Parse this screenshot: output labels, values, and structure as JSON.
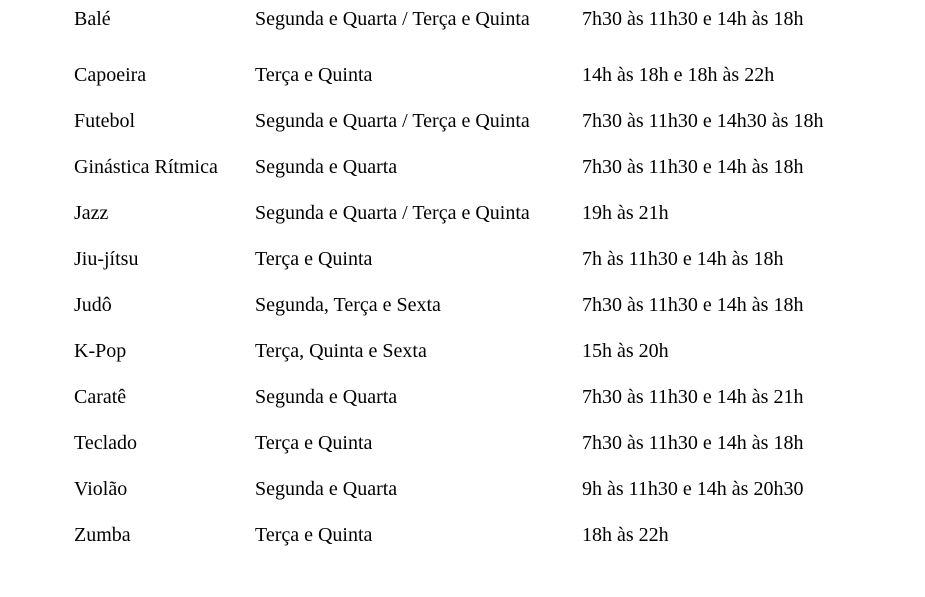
{
  "rows": [
    {
      "activity": "Balé",
      "days": "Segunda e Quarta / Terça e Quinta",
      "hours": "7h30 às 11h30 e 14h às 18h"
    },
    {
      "activity": "Capoeira",
      "days": "Terça e Quinta",
      "hours": "14h às 18h e 18h às 22h"
    },
    {
      "activity": "Futebol",
      "days": "Segunda e Quarta / Terça e Quinta",
      "hours": "7h30 às 11h30 e 14h30 às 18h"
    },
    {
      "activity": "Ginástica Rítmica",
      "days": "Segunda e Quarta",
      "hours": "7h30 às 11h30 e 14h às 18h"
    },
    {
      "activity": "Jazz",
      "days": "Segunda e Quarta / Terça e Quinta",
      "hours": "19h às 21h"
    },
    {
      "activity": "Jiu-jítsu",
      "days": "Terça e Quinta",
      "hours": "7h às 11h30 e 14h às 18h"
    },
    {
      "activity": "Judô",
      "days": "Segunda, Terça e Sexta",
      "hours": "7h30 às 11h30 e 14h às 18h"
    },
    {
      "activity": "K-Pop",
      "days": "Terça, Quinta e Sexta",
      "hours": "15h às 20h"
    },
    {
      "activity": "Caratê",
      "days": "Segunda e Quarta",
      "hours": "7h30 às 11h30 e 14h às 21h"
    },
    {
      "activity": "Teclado",
      "days": "Terça e Quinta",
      "hours": "7h30 às 11h30 e 14h às 18h"
    },
    {
      "activity": "Violão",
      "days": "Segunda e Quarta",
      "hours": "9h às 11h30 e 14h às 20h30"
    },
    {
      "activity": "Zumba",
      "days": "Terça e Quinta",
      "hours": "18h às 22h"
    }
  ]
}
